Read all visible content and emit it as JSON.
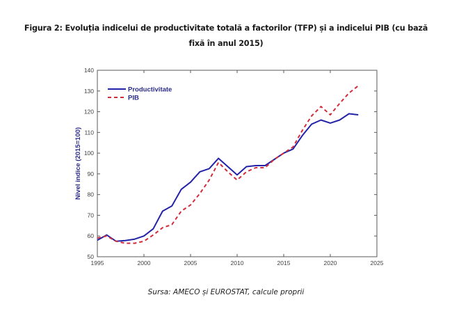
{
  "figure": {
    "title_line1": "Figura 2: Evoluția indicelui de productivitate totală a factorilor (TFP) și a indicelui PIB (cu bază",
    "title_line2": "fixă în anul 2015)",
    "source": "Sursa: AMECO și EUROSTAT, calcule proprii"
  },
  "chart_data": {
    "type": "line",
    "title": "Figura 2: Evoluția indicelui de productivitate totală a factorilor (TFP) și a indicelui PIB (cu bază fixă în anul 2015)",
    "xlabel": "",
    "ylabel": "Nivel indice (2015=100)",
    "xlim": [
      1995,
      2025
    ],
    "ylim": [
      50,
      140
    ],
    "xticks": [
      1995,
      2000,
      2005,
      2010,
      2015,
      2020,
      2025
    ],
    "yticks": [
      50,
      60,
      70,
      80,
      90,
      100,
      110,
      120,
      130,
      140
    ],
    "grid": false,
    "legend_position": "top-left",
    "x": [
      1995,
      1996,
      1997,
      1998,
      1999,
      2000,
      2001,
      2002,
      2003,
      2004,
      2005,
      2006,
      2007,
      2008,
      2009,
      2010,
      2011,
      2012,
      2013,
      2014,
      2015,
      2016,
      2017,
      2018,
      2019,
      2020,
      2021,
      2022,
      2023
    ],
    "series": [
      {
        "name": "Productivitate",
        "color": "#2323a8",
        "style": "solid",
        "values": [
          58,
          60.5,
          57.5,
          57.8,
          58.5,
          60,
          63.5,
          72,
          74.5,
          82.5,
          86,
          91,
          92.5,
          97.5,
          93.5,
          89.5,
          93.5,
          94,
          94,
          97,
          100,
          102,
          108.5,
          114,
          116,
          114.5,
          116,
          119,
          118.5
        ]
      },
      {
        "name": "PIB",
        "color": "#d22b3a",
        "style": "dashed",
        "values": [
          59,
          60,
          57.5,
          56.5,
          56.5,
          57.5,
          60.5,
          64,
          65.5,
          72,
          75,
          80.5,
          87,
          95.5,
          91,
          87,
          91,
          93,
          93,
          97,
          100,
          103,
          111,
          118,
          122.5,
          118.5,
          124,
          129,
          132.5
        ]
      }
    ]
  }
}
